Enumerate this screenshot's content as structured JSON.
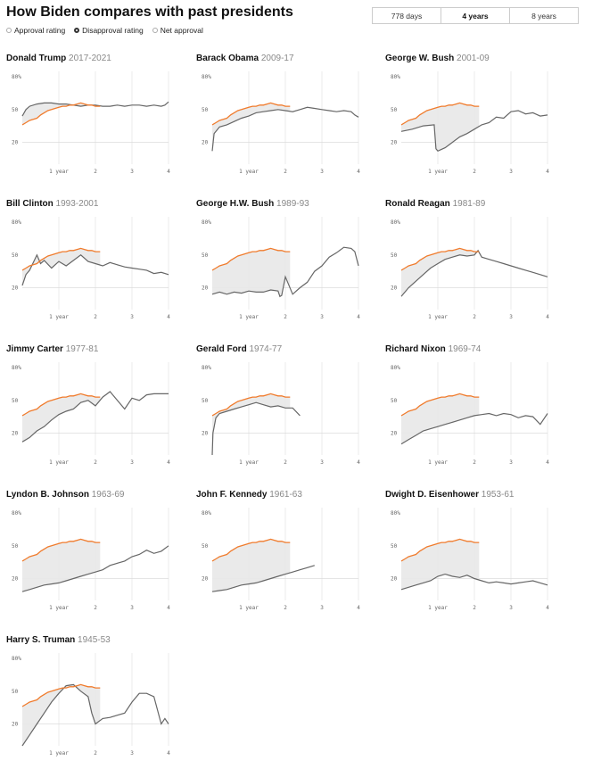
{
  "title": "How Biden compares with past presidents",
  "metric_options": [
    {
      "label": "Approval rating",
      "selected": false
    },
    {
      "label": "Disapproval rating",
      "selected": true
    },
    {
      "label": "Net approval",
      "selected": false
    }
  ],
  "range_options": [
    {
      "label": "778 days",
      "selected": false
    },
    {
      "label": "4 years",
      "selected": true
    },
    {
      "label": "8 years",
      "selected": false
    }
  ],
  "colors": {
    "biden": "#f07b2c",
    "past": "#666666",
    "shade": "#e8e8e8"
  },
  "chart_data": {
    "type": "line",
    "xlabel": "",
    "ylabel": "",
    "xlim": [
      0,
      4
    ],
    "ylim": [
      0,
      80
    ],
    "x_ticks": [
      {
        "value": 1,
        "label": "1 year"
      },
      {
        "value": 2,
        "label": "2"
      },
      {
        "value": 3,
        "label": "3"
      },
      {
        "value": 4,
        "label": "4"
      }
    ],
    "y_ticks": [
      {
        "value": 20,
        "label": "20"
      },
      {
        "value": 50,
        "label": "50"
      },
      {
        "value": 80,
        "label": "80%"
      }
    ],
    "biden": {
      "x": [
        0,
        0.1,
        0.2,
        0.3,
        0.4,
        0.5,
        0.6,
        0.7,
        0.8,
        0.9,
        1.0,
        1.1,
        1.2,
        1.3,
        1.4,
        1.5,
        1.6,
        1.7,
        1.8,
        1.9,
        2.0,
        2.13
      ],
      "y": [
        36,
        38,
        40,
        41,
        42,
        45,
        47,
        49,
        50,
        51,
        52,
        53,
        53,
        54,
        54,
        55,
        56,
        55,
        54,
        54,
        53,
        53
      ]
    },
    "panels": [
      {
        "name": "Donald Trump",
        "years": "2017-2021",
        "x": [
          0,
          0.1,
          0.2,
          0.4,
          0.6,
          0.8,
          1.0,
          1.2,
          1.4,
          1.6,
          1.8,
          2.0,
          2.2,
          2.4,
          2.6,
          2.8,
          3.0,
          3.2,
          3.4,
          3.6,
          3.8,
          3.9,
          4.0
        ],
        "y": [
          44,
          50,
          53,
          55,
          56,
          56,
          55,
          55,
          54,
          53,
          54,
          54,
          53,
          53,
          54,
          53,
          54,
          54,
          53,
          54,
          53,
          54,
          57
        ]
      },
      {
        "name": "Barack Obama",
        "years": "2009-17",
        "x": [
          0,
          0.05,
          0.2,
          0.4,
          0.6,
          0.8,
          1.0,
          1.2,
          1.4,
          1.6,
          1.8,
          2.0,
          2.2,
          2.4,
          2.6,
          2.8,
          3.0,
          3.2,
          3.4,
          3.6,
          3.8,
          3.9,
          4.0
        ],
        "y": [
          12,
          28,
          34,
          36,
          39,
          42,
          44,
          47,
          48,
          49,
          50,
          49,
          48,
          50,
          52,
          51,
          50,
          49,
          48,
          49,
          48,
          45,
          43
        ]
      },
      {
        "name": "George W. Bush",
        "years": "2001-09",
        "x": [
          0,
          0.3,
          0.6,
          0.9,
          0.95,
          1.0,
          1.2,
          1.4,
          1.6,
          1.8,
          2.0,
          2.2,
          2.4,
          2.6,
          2.8,
          3.0,
          3.2,
          3.4,
          3.6,
          3.8,
          4.0
        ],
        "y": [
          30,
          32,
          35,
          36,
          14,
          12,
          15,
          20,
          25,
          28,
          32,
          36,
          38,
          43,
          42,
          48,
          49,
          46,
          47,
          44,
          45
        ]
      },
      {
        "name": "Bill Clinton",
        "years": "1993-2001",
        "x": [
          0,
          0.1,
          0.2,
          0.4,
          0.5,
          0.6,
          0.8,
          1.0,
          1.2,
          1.4,
          1.6,
          1.8,
          2.0,
          2.2,
          2.4,
          2.6,
          2.8,
          3.0,
          3.2,
          3.4,
          3.6,
          3.8,
          4.0
        ],
        "y": [
          22,
          32,
          36,
          50,
          42,
          45,
          38,
          44,
          40,
          45,
          50,
          44,
          42,
          40,
          43,
          41,
          39,
          38,
          37,
          36,
          33,
          34,
          32
        ]
      },
      {
        "name": "George H.W. Bush",
        "years": "1989-93",
        "x": [
          0,
          0.2,
          0.4,
          0.6,
          0.8,
          1.0,
          1.2,
          1.4,
          1.6,
          1.8,
          1.85,
          1.9,
          2.0,
          2.2,
          2.4,
          2.6,
          2.8,
          3.0,
          3.2,
          3.4,
          3.6,
          3.8,
          3.9,
          4.0
        ],
        "y": [
          14,
          16,
          14,
          16,
          15,
          17,
          16,
          16,
          18,
          17,
          12,
          13,
          30,
          14,
          20,
          25,
          35,
          40,
          48,
          52,
          57,
          56,
          53,
          40
        ]
      },
      {
        "name": "Ronald Reagan",
        "years": "1981-89",
        "x": [
          0,
          0.2,
          0.4,
          0.6,
          0.8,
          1.0,
          1.2,
          1.4,
          1.6,
          1.8,
          2.0,
          2.1,
          2.2,
          2.4,
          2.6,
          2.8,
          3.0,
          3.2,
          3.4,
          3.6,
          3.8,
          4.0
        ],
        "y": [
          12,
          20,
          26,
          32,
          38,
          42,
          46,
          48,
          50,
          49,
          50,
          54,
          48,
          46,
          44,
          42,
          40,
          38,
          36,
          34,
          32,
          30
        ]
      },
      {
        "name": "Jimmy Carter",
        "years": "1977-81",
        "x": [
          0,
          0.2,
          0.4,
          0.6,
          0.8,
          1.0,
          1.2,
          1.4,
          1.6,
          1.8,
          2.0,
          2.2,
          2.4,
          2.6,
          2.8,
          3.0,
          3.2,
          3.4,
          3.6,
          3.8,
          4.0
        ],
        "y": [
          12,
          16,
          22,
          26,
          32,
          37,
          40,
          42,
          48,
          50,
          45,
          53,
          58,
          50,
          42,
          52,
          50,
          55,
          56,
          56,
          56
        ]
      },
      {
        "name": "Gerald Ford",
        "years": "1974-77",
        "x": [
          0,
          0.02,
          0.1,
          0.2,
          0.4,
          0.6,
          0.8,
          1.0,
          1.2,
          1.4,
          1.6,
          1.8,
          2.0,
          2.2,
          2.4
        ],
        "y": [
          0,
          20,
          34,
          38,
          40,
          42,
          44,
          46,
          48,
          46,
          44,
          45,
          43,
          43,
          36
        ]
      },
      {
        "name": "Richard Nixon",
        "years": "1969-74",
        "x": [
          0,
          0.2,
          0.4,
          0.6,
          0.8,
          1.0,
          1.2,
          1.4,
          1.6,
          1.8,
          2.0,
          2.2,
          2.4,
          2.6,
          2.8,
          3.0,
          3.2,
          3.4,
          3.6,
          3.8,
          4.0
        ],
        "y": [
          10,
          14,
          18,
          22,
          24,
          26,
          28,
          30,
          32,
          34,
          36,
          37,
          38,
          36,
          38,
          37,
          34,
          36,
          35,
          28,
          38
        ]
      },
      {
        "name": "Lyndon B. Johnson",
        "years": "1963-69",
        "x": [
          0,
          0.2,
          0.4,
          0.6,
          0.8,
          1.0,
          1.2,
          1.4,
          1.6,
          1.8,
          2.0,
          2.2,
          2.4,
          2.6,
          2.8,
          3.0,
          3.2,
          3.4,
          3.6,
          3.8,
          4.0
        ],
        "y": [
          8,
          10,
          12,
          14,
          15,
          16,
          18,
          20,
          22,
          24,
          26,
          28,
          32,
          34,
          36,
          40,
          42,
          46,
          43,
          45,
          50
        ]
      },
      {
        "name": "John F. Kennedy",
        "years": "1961-63",
        "x": [
          0,
          0.2,
          0.4,
          0.6,
          0.8,
          1.0,
          1.2,
          1.4,
          1.6,
          1.8,
          2.0,
          2.2,
          2.4,
          2.6,
          2.8
        ],
        "y": [
          8,
          9,
          10,
          12,
          14,
          15,
          16,
          18,
          20,
          22,
          24,
          26,
          28,
          30,
          32
        ]
      },
      {
        "name": "Dwight D. Eisenhower",
        "years": "1953-61",
        "x": [
          0,
          0.2,
          0.4,
          0.6,
          0.8,
          1.0,
          1.2,
          1.4,
          1.6,
          1.8,
          2.0,
          2.2,
          2.4,
          2.6,
          2.8,
          3.0,
          3.2,
          3.4,
          3.6,
          3.8,
          4.0
        ],
        "y": [
          10,
          12,
          14,
          16,
          18,
          22,
          24,
          22,
          21,
          23,
          20,
          18,
          16,
          17,
          16,
          15,
          16,
          17,
          18,
          16,
          14
        ]
      },
      {
        "name": "Harry S. Truman",
        "years": "1945-53",
        "x": [
          0,
          0.2,
          0.4,
          0.6,
          0.8,
          1.0,
          1.2,
          1.4,
          1.6,
          1.8,
          1.9,
          2.0,
          2.2,
          2.4,
          2.6,
          2.8,
          3.0,
          3.2,
          3.4,
          3.6,
          3.8,
          3.9,
          4.0
        ],
        "y": [
          0,
          10,
          20,
          30,
          40,
          48,
          55,
          56,
          50,
          45,
          30,
          20,
          25,
          26,
          28,
          30,
          40,
          48,
          48,
          45,
          20,
          25,
          20
        ]
      }
    ]
  }
}
